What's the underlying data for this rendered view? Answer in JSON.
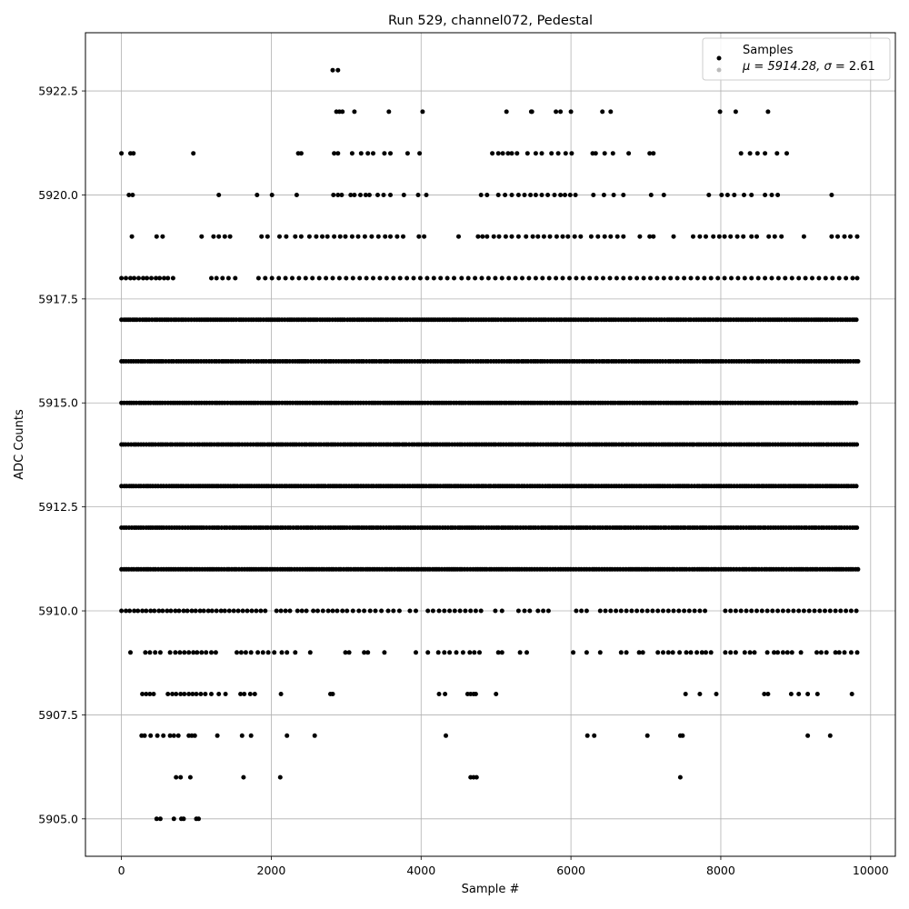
{
  "chart_data": {
    "type": "scatter",
    "title": "Run 529, channel072, Pedestal",
    "xlabel": "Sample #",
    "ylabel": "ADC Counts",
    "xlim": [
      -480,
      10330
    ],
    "ylim": [
      5904.1,
      5923.9
    ],
    "xticks": [
      0,
      2000,
      4000,
      6000,
      8000,
      10000
    ],
    "xtick_labels": [
      "0",
      "2000",
      "4000",
      "6000",
      "8000",
      "10000"
    ],
    "yticks": [
      5905.0,
      5907.5,
      5910.0,
      5912.5,
      5915.0,
      5917.5,
      5920.0,
      5922.5
    ],
    "ytick_labels": [
      "5905.0",
      "5907.5",
      "5910.0",
      "5912.5",
      "5915.0",
      "5917.5",
      "5920.0",
      "5922.5"
    ],
    "grid": true,
    "legend_position": "top-right",
    "legend": {
      "entries": [
        {
          "label": "Samples",
          "color": "#000000"
        },
        {
          "label_prefix": "μ = 5914.28, ",
          "label_sigma": "σ",
          "label_suffix": " = 2.61",
          "color": "#bbbbbb"
        }
      ]
    },
    "series": [
      {
        "name": "Samples",
        "color": "#000000",
        "sample_count": 9840,
        "mean": 5914.28,
        "sigma": 2.61,
        "levels": [
          {
            "y": 5923,
            "x": [
              2820,
              2890
            ]
          },
          {
            "y": 5922,
            "x": [
              2870,
              2910,
              2950,
              3110,
              3570,
              4020,
              5140,
              5470,
              5480,
              5800,
              5860,
              6000,
              6420,
              6530,
              7990,
              8200,
              8630
            ]
          },
          {
            "y": 5921,
            "x": [
              0,
              120,
              160,
              960,
              2360,
              2400,
              2840,
              2890,
              3080,
              3200,
              3290,
              3360,
              3510,
              3590,
              3820,
              3980,
              4950,
              5030,
              5090,
              5160,
              5210,
              5280,
              5420,
              5530,
              5610,
              5740,
              5830,
              5930,
              6010,
              6290,
              6330,
              6450,
              6560,
              6770,
              7050,
              7100,
              8270,
              8390,
              8490,
              8590,
              8750,
              8880
            ]
          },
          {
            "y": 5920,
            "x": [
              100,
              150,
              1300,
              1810,
              2010,
              2340,
              2830,
              2890,
              2940,
              3060,
              3110,
              3190,
              3260,
              3310,
              3420,
              3500,
              3590,
              3770,
              3960,
              4070,
              4800,
              4880,
              5030,
              5120,
              5210,
              5300,
              5380,
              5460,
              5530,
              5610,
              5690,
              5780,
              5860,
              5920,
              5990,
              6060,
              6300,
              6440,
              6570,
              6700,
              7070,
              7240,
              7840,
              8010,
              8090,
              8180,
              8310,
              8410,
              8590,
              8680,
              8760,
              9480
            ]
          },
          {
            "y": 5919,
            "x": [
              140,
              470,
              550,
              1070,
              1230,
              1300,
              1380,
              1450,
              1870,
              1950,
              2110,
              2200,
              2320,
              2400,
              2510,
              2600,
              2680,
              2750,
              2840,
              2920,
              2990,
              3080,
              3160,
              3250,
              3340,
              3430,
              3520,
              3590,
              3680,
              3760,
              3970,
              4040,
              4500,
              4760,
              4820,
              4880,
              4970,
              5040,
              5130,
              5210,
              5300,
              5400,
              5490,
              5560,
              5640,
              5720,
              5810,
              5890,
              5960,
              6050,
              6130,
              6270,
              6360,
              6450,
              6530,
              6620,
              6700,
              6920,
              7050,
              7100,
              7370,
              7630,
              7720,
              7800,
              7900,
              7980,
              8050,
              8130,
              8220,
              8300,
              8410,
              8480,
              8640,
              8720,
              8810,
              9110,
              9480,
              9560,
              9650,
              9730,
              9820
            ]
          },
          {
            "y": 5918,
            "x": [
              0,
              60,
              120,
              170,
              230,
              290,
              340,
              400,
              460,
              510,
              570,
              620,
              690,
              1200,
              1270,
              1350,
              1430,
              1520,
              1830,
              1920,
              2010,
              2100,
              2190,
              2280,
              2370,
              2460,
              2550,
              2640,
              2730,
              2820,
              2910,
              3000,
              3090,
              3180,
              3270,
              3360,
              3450,
              3540,
              3630,
              3720,
              3810,
              3900,
              3990,
              4080,
              4170,
              4260,
              4350,
              4440,
              4540,
              4630,
              4720,
              4810,
              4900,
              4990,
              5080,
              5170,
              5260,
              5350,
              5440,
              5530,
              5620,
              5710,
              5800,
              5890,
              5980,
              6070,
              6160,
              6250,
              6340,
              6430,
              6520,
              6610,
              6700,
              6790,
              6880,
              6970,
              7060,
              7150,
              7240,
              7330,
              7420,
              7510,
              7600,
              7690,
              7780,
              7870,
              7960,
              8050,
              8140,
              8230,
              8320,
              8410,
              8500,
              8590,
              8680,
              8770,
              8860,
              8950,
              9040,
              9130,
              9220,
              9310,
              9400,
              9490,
              9580,
              9670,
              9760,
              9820
            ]
          },
          {
            "y": 5917,
            "x": "dense"
          },
          {
            "y": 5916,
            "x": "dense"
          },
          {
            "y": 5915,
            "x": "dense"
          },
          {
            "y": 5914,
            "x": "dense"
          },
          {
            "y": 5913,
            "x": "dense"
          },
          {
            "y": 5912,
            "x": "dense"
          },
          {
            "y": 5911,
            "x": "dense"
          },
          {
            "y": 5910,
            "x": [
              0,
              60,
              110,
              170,
              220,
              280,
              330,
              390,
              440,
              500,
              550,
              610,
              660,
              720,
              770,
              830,
              880,
              940,
              990,
              1050,
              1100,
              1160,
              1210,
              1270,
              1330,
              1380,
              1440,
              1500,
              1560,
              1620,
              1680,
              1740,
              1800,
              1860,
              1920,
              2070,
              2130,
              2190,
              2250,
              2350,
              2410,
              2470,
              2560,
              2620,
              2690,
              2760,
              2820,
              2880,
              2950,
              3010,
              3090,
              3170,
              3240,
              3320,
              3390,
              3470,
              3560,
              3630,
              3710,
              3850,
              3930,
              4090,
              4160,
              4240,
              4310,
              4380,
              4450,
              4520,
              4590,
              4660,
              4730,
              4800,
              4990,
              5080,
              5300,
              5380,
              5450,
              5560,
              5630,
              5700,
              6070,
              6140,
              6210,
              6390,
              6460,
              6530,
              6600,
              6670,
              6740,
              6810,
              6880,
              6950,
              7020,
              7090,
              7160,
              7230,
              7300,
              7370,
              7440,
              7510,
              7580,
              7650,
              7720,
              7790,
              8060,
              8130,
              8200,
              8270,
              8340,
              8410,
              8480,
              8550,
              8620,
              8690,
              8760,
              8830,
              8900,
              8970,
              9040,
              9110,
              9180,
              9250,
              9320,
              9390,
              9460,
              9530,
              9600,
              9670,
              9740,
              9810
            ]
          },
          {
            "y": 5909,
            "x": [
              120,
              320,
              380,
              450,
              520,
              650,
              720,
              780,
              840,
              900,
              960,
              1010,
              1070,
              1130,
              1200,
              1260,
              1540,
              1600,
              1660,
              1730,
              1820,
              1890,
              1960,
              2040,
              2140,
              2210,
              2320,
              2520,
              2990,
              3040,
              3240,
              3290,
              3510,
              3930,
              4090,
              4230,
              4310,
              4380,
              4470,
              4560,
              4650,
              4710,
              4780,
              5030,
              5080,
              5320,
              5410,
              6030,
              6210,
              6390,
              6670,
              6740,
              6910,
              6960,
              7160,
              7230,
              7300,
              7360,
              7450,
              7540,
              7600,
              7680,
              7750,
              7800,
              7870,
              8060,
              8130,
              8200,
              8320,
              8390,
              8450,
              8620,
              8710,
              8760,
              8830,
              8890,
              8950,
              9070,
              9280,
              9340,
              9410,
              9530,
              9580,
              9650,
              9740,
              9820
            ]
          },
          {
            "y": 5908,
            "x": [
              280,
              330,
              380,
              430,
              620,
              680,
              730,
              790,
              840,
              900,
              950,
              1000,
              1060,
              1120,
              1200,
              1300,
              1390,
              1590,
              1640,
              1720,
              1780,
              2130,
              2790,
              2820,
              4240,
              4320,
              4620,
              4660,
              4700,
              4730,
              5000,
              7530,
              7720,
              7940,
              8580,
              8630,
              8940,
              9040,
              9160,
              9290,
              9750
            ]
          },
          {
            "y": 5907,
            "x": [
              270,
              310,
              390,
              480,
              560,
              650,
              700,
              760,
              900,
              940,
              980,
              1280,
              1610,
              1730,
              2210,
              2580,
              4330,
              6220,
              6310,
              7020,
              7460,
              7490,
              9160,
              9460
            ]
          },
          {
            "y": 5906,
            "x": [
              730,
              790,
              920,
              1630,
              2120,
              4660,
              4700,
              4740,
              7460
            ]
          },
          {
            "y": 5905,
            "x": [
              470,
              520,
              700,
              800,
              830,
              1000,
              1030
            ]
          }
        ]
      }
    ]
  }
}
